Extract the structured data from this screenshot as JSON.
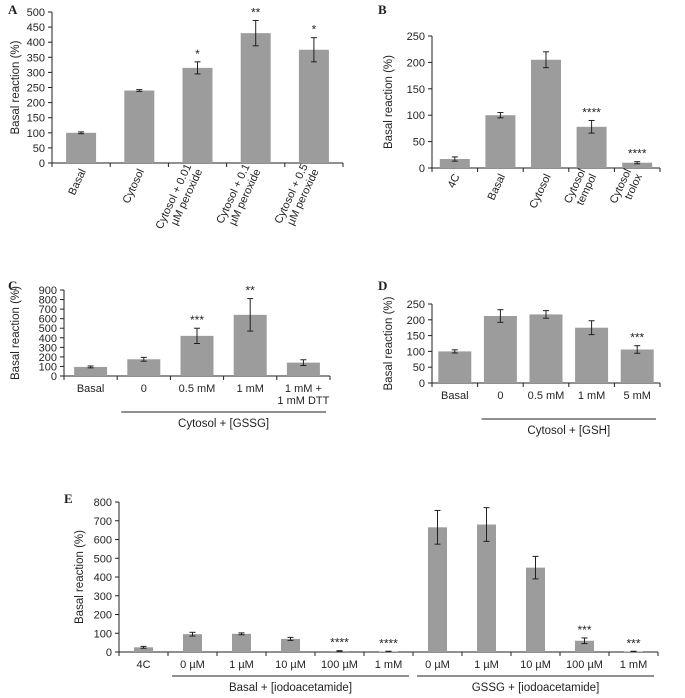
{
  "colors": {
    "bar": "#9c9c9c",
    "axis": "#231f20",
    "error": "#231f20"
  },
  "chart_data": [
    {
      "panel": "A",
      "type": "bar",
      "ylabel": "Basal reaction (%)",
      "ylim": [
        0,
        500
      ],
      "yticks": [
        "0",
        "50",
        "100",
        "150",
        "200",
        "250",
        "300",
        "350",
        "400",
        "450",
        "500"
      ],
      "categories": [
        "Basal",
        "Cytosol",
        "Cytosol + 0.01 µM peroxide",
        "Cytosol + 0.1 µM peroxide",
        "Cytosol + 0.5 µM peroxide"
      ],
      "tick_lines": [
        [
          "Basal"
        ],
        [
          "Cytosol"
        ],
        [
          "Cytosol + 0.01",
          "µM peroxide"
        ],
        [
          "Cytosol + 0.1",
          "µM peroxide"
        ],
        [
          "Cytosol + 0.5",
          "µM peroxide"
        ]
      ],
      "values": [
        100,
        240,
        315,
        430,
        375
      ],
      "errors": [
        3,
        3,
        20,
        42,
        40
      ],
      "annotations": [
        "",
        "",
        "*",
        "**",
        "*"
      ]
    },
    {
      "panel": "B",
      "type": "bar",
      "ylabel": "Basal reaction (%)",
      "ylim": [
        0,
        250
      ],
      "yticks": [
        "0",
        "50",
        "100",
        "150",
        "200",
        "250"
      ],
      "categories": [
        "4C",
        "Basal",
        "Cytosol",
        "Cytosol tempol",
        "Cytosol trolox"
      ],
      "tick_lines": [
        [
          "4C"
        ],
        [
          "Basal"
        ],
        [
          "Cytosol"
        ],
        [
          "Cytosol",
          "tempol"
        ],
        [
          "Cytosol",
          "trolox"
        ]
      ],
      "values": [
        17,
        100,
        205,
        78,
        10
      ],
      "errors": [
        4,
        5,
        15,
        12,
        2
      ],
      "annotations": [
        "",
        "",
        "",
        "****",
        "****"
      ]
    },
    {
      "panel": "C",
      "type": "bar",
      "ylabel": "Basal reaction (%)",
      "ylim": [
        0,
        900
      ],
      "yticks": [
        "0",
        "100",
        "200",
        "300",
        "400",
        "500",
        "600",
        "700",
        "800",
        "900"
      ],
      "categories": [
        "Basal",
        "0",
        "0.5 mM",
        "1 mM",
        "1 mM + 1 mM DTT"
      ],
      "tick_lines": [
        [
          "Basal"
        ],
        [
          "0"
        ],
        [
          "0.5 mM"
        ],
        [
          "1 mM"
        ],
        [
          "1 mM +",
          "1 mM DTT"
        ]
      ],
      "values": [
        95,
        175,
        420,
        640,
        140
      ],
      "errors": [
        10,
        20,
        80,
        170,
        30
      ],
      "annotations": [
        "",
        "",
        "***",
        "**",
        ""
      ],
      "group_label": "Cytosol + [GSSG]"
    },
    {
      "panel": "D",
      "type": "bar",
      "ylabel": "Basal reaction (%)",
      "ylim": [
        0,
        250
      ],
      "yticks": [
        "0",
        "50",
        "100",
        "150",
        "200",
        "250"
      ],
      "categories": [
        "Basal",
        "0",
        "0.5 mM",
        "1 mM",
        "5 mM"
      ],
      "tick_lines": [
        [
          "Basal"
        ],
        [
          "0"
        ],
        [
          "0.5 mM"
        ],
        [
          "1 mM"
        ],
        [
          "5 mM"
        ]
      ],
      "values": [
        100,
        212,
        217,
        175,
        106
      ],
      "errors": [
        5,
        20,
        12,
        22,
        12
      ],
      "annotations": [
        "",
        "",
        "",
        "",
        "***"
      ],
      "group_label": "Cytosol + [GSH]"
    },
    {
      "panel": "E",
      "type": "bar",
      "ylabel": "Basal reaction (%)",
      "ylim": [
        0,
        800
      ],
      "yticks": [
        "0",
        "100",
        "200",
        "300",
        "400",
        "500",
        "600",
        "700",
        "800"
      ],
      "categories": [
        "4C",
        "0 µM",
        "1 µM",
        "10 µM",
        "100 µM",
        "1 mM",
        "0 µM",
        "1 µM",
        "10 µM",
        "100 µM",
        "1 mM"
      ],
      "tick_lines": [
        [
          "4C"
        ],
        [
          "0 µM"
        ],
        [
          "1 µM"
        ],
        [
          "10 µM"
        ],
        [
          "100 µM"
        ],
        [
          "1 mM"
        ],
        [
          "0 µM"
        ],
        [
          "1 µM"
        ],
        [
          "10 µM"
        ],
        [
          "100 µM"
        ],
        [
          "1 mM"
        ]
      ],
      "values": [
        25,
        95,
        97,
        70,
        5,
        3,
        665,
        680,
        450,
        60,
        3
      ],
      "errors": [
        5,
        10,
        5,
        8,
        2,
        1,
        90,
        90,
        60,
        15,
        1
      ],
      "annotations": [
        "",
        "",
        "",
        "",
        "****",
        "****",
        "",
        "",
        "",
        "***",
        "***"
      ],
      "group_labels": [
        "Basal + [iodoacetamide]",
        "GSSG + [iodoacetamide]"
      ]
    }
  ]
}
